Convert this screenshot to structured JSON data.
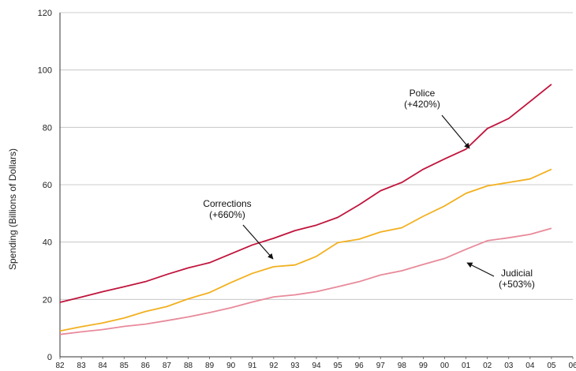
{
  "chart_data": {
    "type": "line",
    "ylabel": "Spending (Billions of Dollars)",
    "ylim": [
      0,
      120
    ],
    "yticks": [
      0,
      20,
      40,
      60,
      80,
      100,
      120
    ],
    "grid": "horizontal",
    "categories": [
      "82",
      "83",
      "84",
      "85",
      "86",
      "87",
      "88",
      "89",
      "90",
      "91",
      "92",
      "93",
      "94",
      "95",
      "96",
      "97",
      "98",
      "99",
      "00",
      "01",
      "02",
      "03",
      "04",
      "05",
      "06"
    ],
    "series": [
      {
        "color": "#C0143C",
        "values": [
          19.0,
          20.8,
          22.7,
          24.4,
          26.2,
          28.7,
          31.0,
          32.8,
          35.9,
          39.0,
          41.3,
          44.0,
          45.9,
          48.6,
          53.0,
          57.9,
          60.8,
          65.4,
          69.0,
          72.4,
          79.6,
          83.1,
          89.0,
          95.0,
          null
        ]
      },
      {
        "color": "#F2B01E",
        "values": [
          9.0,
          10.5,
          11.8,
          13.5,
          15.8,
          17.5,
          20.2,
          22.4,
          25.9,
          29.1,
          31.4,
          32.0,
          35.0,
          39.8,
          41.0,
          43.5,
          45.0,
          49.0,
          52.6,
          57.0,
          59.6,
          60.8,
          62.0,
          65.4,
          null
        ]
      },
      {
        "color": "#E88A9A",
        "values": [
          7.8,
          8.7,
          9.5,
          10.6,
          11.4,
          12.6,
          13.9,
          15.4,
          17.1,
          19.1,
          20.9,
          21.6,
          22.7,
          24.4,
          26.2,
          28.5,
          30.0,
          32.2,
          34.3,
          37.5,
          40.5,
          41.5,
          42.7,
          44.8,
          null
        ]
      }
    ],
    "annotations": [
      {
        "lines": [
          "Police",
          "(+420%)"
        ]
      },
      {
        "lines": [
          "Corrections",
          "(+660%)"
        ]
      },
      {
        "lines": [
          "Judicial",
          "(+503%)"
        ]
      }
    ]
  }
}
